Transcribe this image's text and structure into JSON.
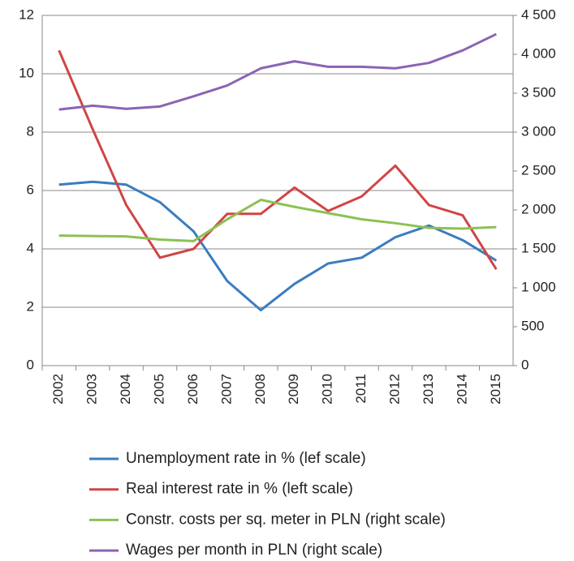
{
  "chart_data": {
    "type": "line",
    "categories": [
      "2002",
      "2003",
      "2004",
      "2005",
      "2006",
      "2007",
      "2008",
      "2009",
      "2010",
      "2011",
      "2012",
      "2013",
      "2014",
      "2015"
    ],
    "series": [
      {
        "name": "Unemployment rate in % (lef scale)",
        "color": "#3a7dc0",
        "values": [
          6.2,
          6.3,
          6.2,
          5.6,
          4.6,
          2.9,
          1.9,
          2.8,
          3.5,
          3.7,
          4.4,
          4.8,
          4.3,
          3.6
        ]
      },
      {
        "name": "Real interest rate in % (left scale)",
        "color": "#d04545",
        "values": [
          10.8,
          8.1,
          5.5,
          3.7,
          4.0,
          5.2,
          5.2,
          6.1,
          5.3,
          5.8,
          6.85,
          5.5,
          5.15,
          3.3
        ]
      },
      {
        "name": "Constr. costs per sq. meter in PLN (right scale)",
        "color": "#8cc152",
        "axis": "y2",
        "values": [
          1670,
          1665,
          1660,
          1620,
          1600,
          1880,
          2130,
          2040,
          1960,
          1880,
          1830,
          1770,
          1760,
          1780
        ]
      },
      {
        "name": "Wages per month in PLN (right scale)",
        "color": "#8a64b4",
        "axis": "y2",
        "values": [
          3290,
          3340,
          3300,
          3330,
          3460,
          3600,
          3820,
          3910,
          3840,
          3840,
          3820,
          3890,
          4050,
          4260
        ]
      }
    ],
    "ylim": [
      0,
      12
    ],
    "yticks": [
      0,
      2,
      4,
      6,
      8,
      10,
      12
    ],
    "y2lim": [
      0,
      4500
    ],
    "y2ticks": [
      0,
      500,
      {
        "value": 1000,
        "label": "1 000"
      },
      {
        "value": 1500,
        "label": "1 500"
      },
      {
        "value": 2000,
        "label": "2 000"
      },
      {
        "value": 2500,
        "label": "2 500"
      },
      {
        "value": 3000,
        "label": "3 000"
      },
      {
        "value": 3500,
        "label": "3 500"
      },
      {
        "value": 4000,
        "label": "4 000"
      },
      {
        "value": 4500,
        "label": "4 500"
      }
    ],
    "grid": true
  }
}
